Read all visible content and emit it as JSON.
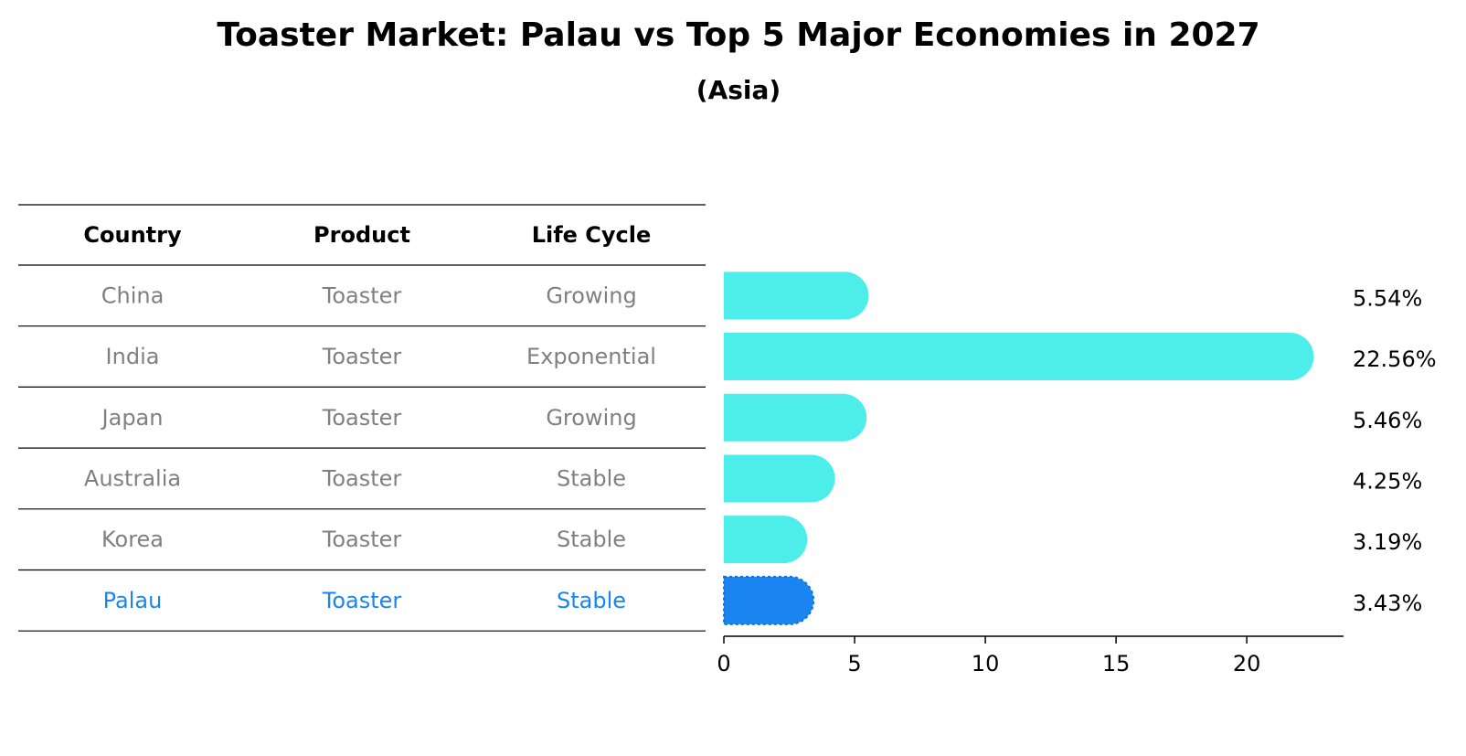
{
  "chart_data": {
    "type": "bar",
    "orientation": "horizontal",
    "title": "Toaster Market: Palau vs Top 5 Major Economies in 2027",
    "subtitle": "(Asia)",
    "table": {
      "headers": [
        "Country",
        "Product",
        "Life Cycle"
      ],
      "rows": [
        [
          "China",
          "Toaster",
          "Growing"
        ],
        [
          "India",
          "Toaster",
          "Exponential"
        ],
        [
          "Japan",
          "Toaster",
          "Growing"
        ],
        [
          "Australia",
          "Toaster",
          "Stable"
        ],
        [
          "Korea",
          "Toaster",
          "Stable"
        ],
        [
          "Palau",
          "Toaster",
          "Stable"
        ]
      ],
      "highlight_row": 5
    },
    "categories": [
      "China",
      "India",
      "Japan",
      "Australia",
      "Korea",
      "Palau"
    ],
    "values": [
      5.54,
      22.56,
      5.46,
      4.25,
      3.19,
      3.43
    ],
    "value_labels": [
      "5.54%",
      "22.56%",
      "5.46%",
      "4.25%",
      "3.19%",
      "3.43%"
    ],
    "xlim": [
      0,
      23.7
    ],
    "xticks": [
      0,
      5,
      10,
      15,
      20
    ],
    "xtick_labels": [
      "0",
      "5",
      "10",
      "15",
      "20"
    ],
    "xlabel": "",
    "ylabel": "",
    "grid": false,
    "colors": {
      "bar": "#4DEEEA",
      "highlight_bar": "#1A85F1",
      "highlight_text": "#1A85F1",
      "table_text": "#808080",
      "header_text": "#000000",
      "axis": "#000000"
    }
  }
}
